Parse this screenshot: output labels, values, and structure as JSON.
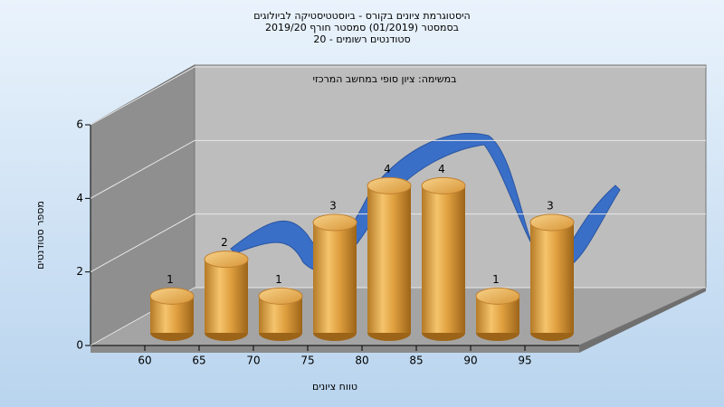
{
  "chart_data": {
    "type": "bar",
    "title": [
      "היסטוגרמת ציונים בקורס - ביוסטטיסטיקה לביולוגים",
      "בסמסטר  (01/2019)  סמסטר חורף 2019/20",
      "סטודנטים רשומים - 20"
    ],
    "annotation": "במשימה: ציון סופי במחשב המרכזי",
    "x_label": "טווח ציונים",
    "y_label": "מספר סטודנטים",
    "categories": [
      "60",
      "65",
      "70",
      "75",
      "80",
      "85",
      "90",
      "95"
    ],
    "values": [
      1,
      2,
      1,
      3,
      4,
      4,
      1,
      3
    ],
    "color": "#e0a040",
    "ylim": [
      0,
      6
    ],
    "yticks": [
      0,
      2,
      4,
      6
    ],
    "grid": true
  }
}
